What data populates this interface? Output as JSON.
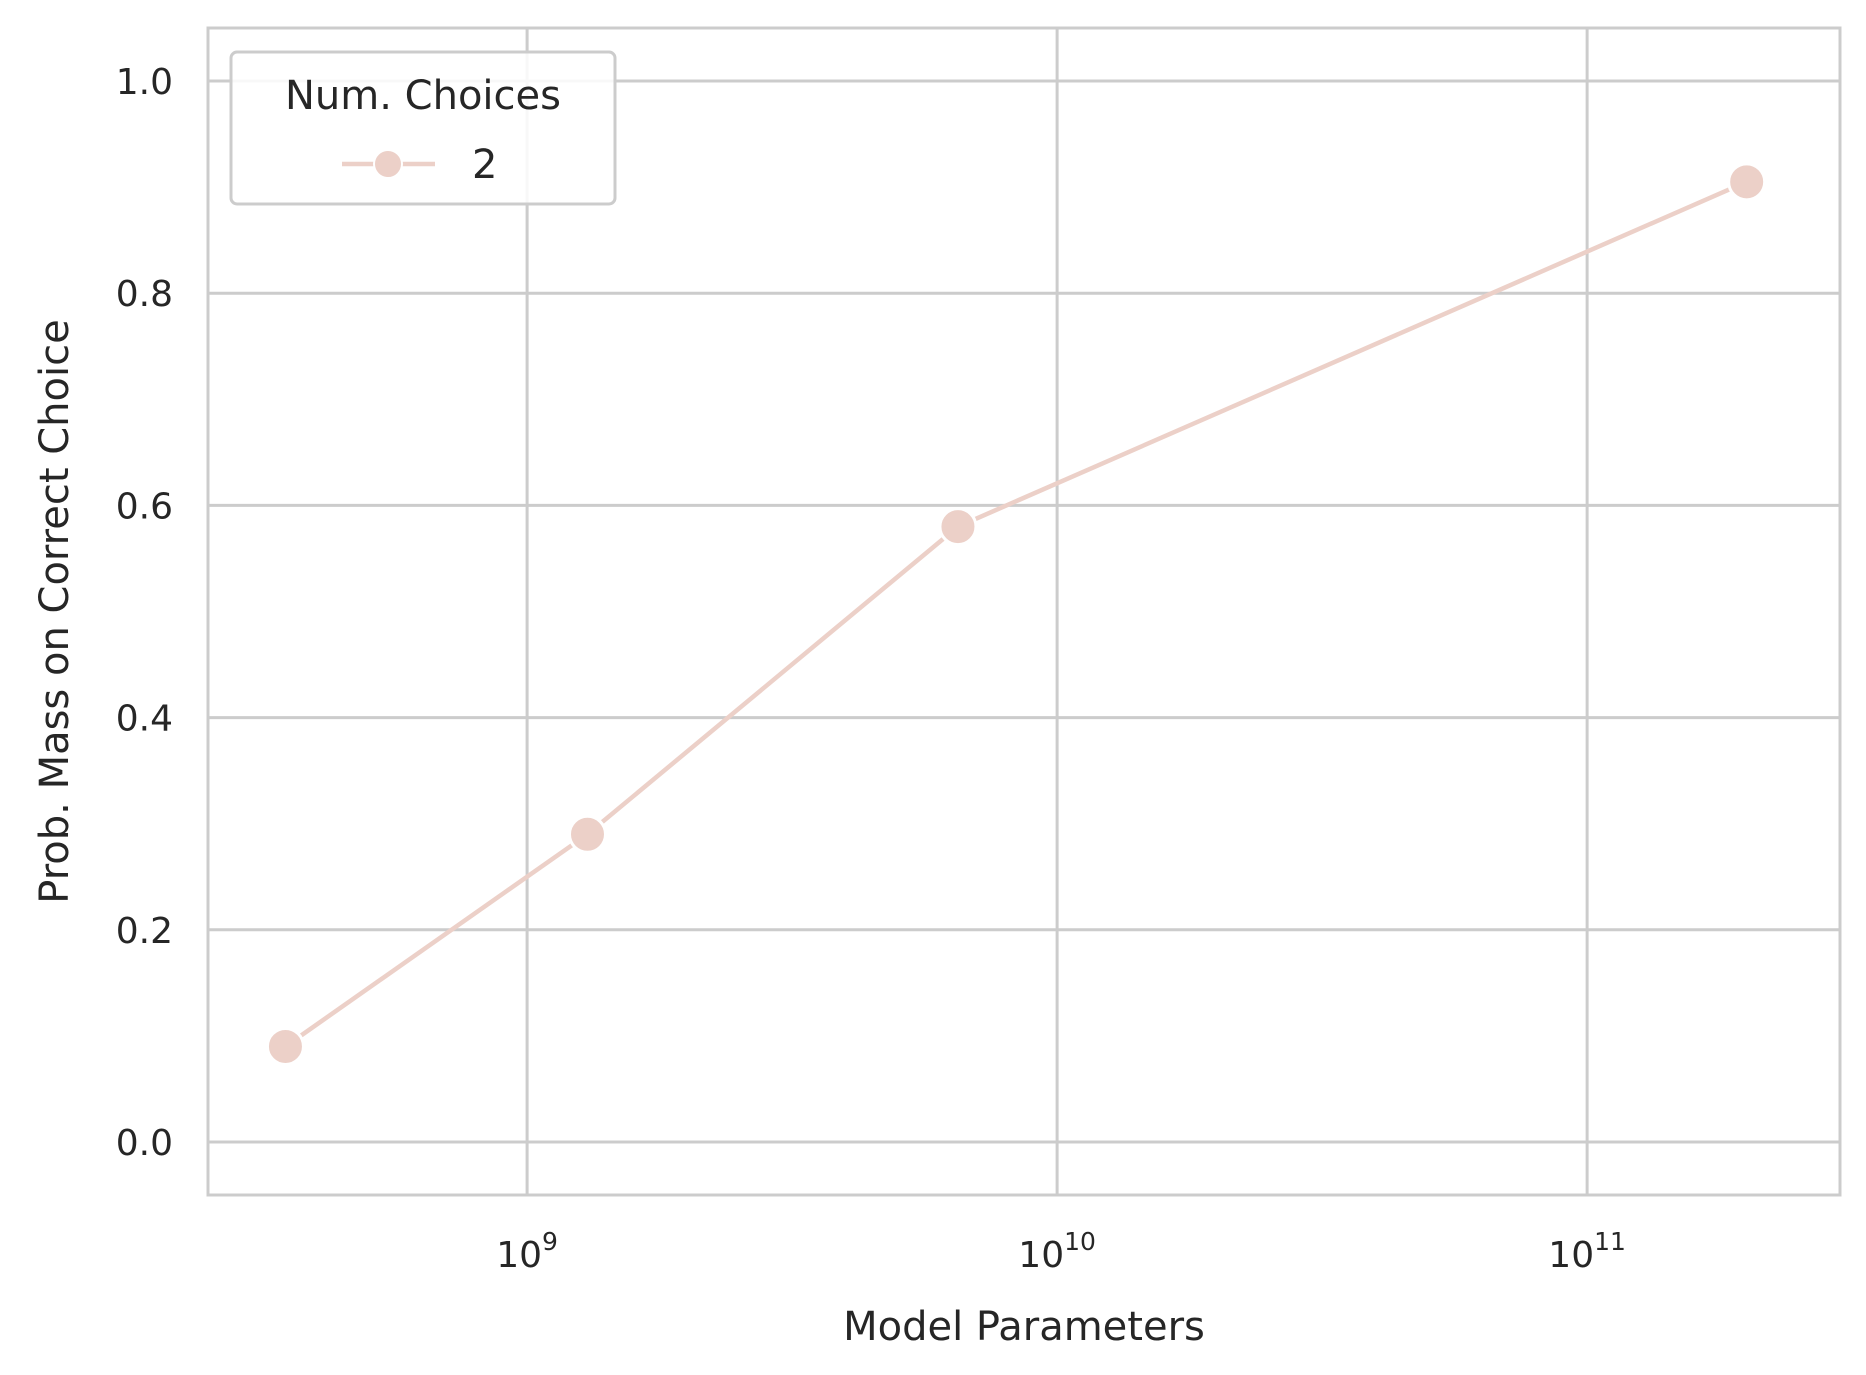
{
  "chart_data": {
    "type": "line",
    "xscale": "log",
    "xlabel": "Model Parameters",
    "ylabel": "Prob. Mass on Correct Choice",
    "xlim": [
      250000000,
      300000000000
    ],
    "ylim": [
      -0.05,
      1.05
    ],
    "x_ticks": [
      {
        "value": 1000000000,
        "base": "10",
        "exp": "9"
      },
      {
        "value": 10000000000,
        "base": "10",
        "exp": "10"
      },
      {
        "value": 100000000000,
        "base": "10",
        "exp": "11"
      }
    ],
    "y_ticks": [
      {
        "value": 0.0,
        "label": "0.0"
      },
      {
        "value": 0.2,
        "label": "0.2"
      },
      {
        "value": 0.4,
        "label": "0.4"
      },
      {
        "value": 0.6,
        "label": "0.6"
      },
      {
        "value": 0.8,
        "label": "0.8"
      },
      {
        "value": 1.0,
        "label": "1.0"
      }
    ],
    "grid": true,
    "legend": {
      "title": "Num. Choices",
      "placement": "upper-left"
    },
    "series": [
      {
        "name": "2",
        "color": "#ecd0c8",
        "x": [
          350000000,
          1300000000,
          6500000000,
          200000000000
        ],
        "y": [
          0.09,
          0.29,
          0.58,
          0.905
        ]
      }
    ]
  }
}
